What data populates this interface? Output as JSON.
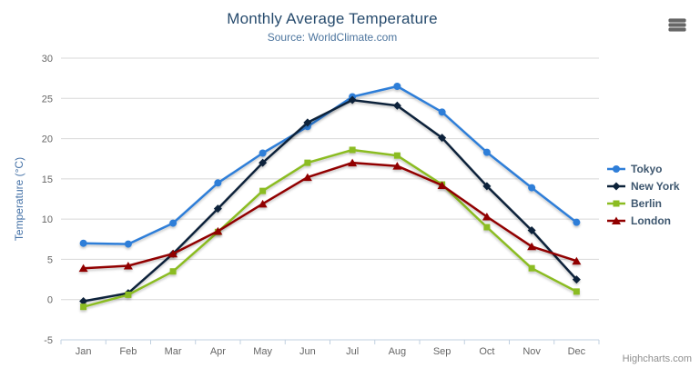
{
  "chart_data": {
    "type": "line",
    "title": "Monthly Average Temperature",
    "subtitle": "Source: WorldClimate.com",
    "xlabel": "",
    "ylabel": "Temperature (°C)",
    "categories": [
      "Jan",
      "Feb",
      "Mar",
      "Apr",
      "May",
      "Jun",
      "Jul",
      "Aug",
      "Sep",
      "Oct",
      "Nov",
      "Dec"
    ],
    "ylim": [
      -5,
      30
    ],
    "yticks": [
      -5,
      0,
      5,
      10,
      15,
      20,
      25,
      30
    ],
    "grid": true,
    "legend_position": "right",
    "series": [
      {
        "name": "Tokyo",
        "color": "#2f7ed8",
        "marker": "circle",
        "values": [
          7.0,
          6.9,
          9.5,
          14.5,
          18.2,
          21.5,
          25.2,
          26.5,
          23.3,
          18.3,
          13.9,
          9.6
        ]
      },
      {
        "name": "New York",
        "color": "#0d233a",
        "marker": "diamond",
        "values": [
          -0.2,
          0.8,
          5.7,
          11.3,
          17.0,
          22.0,
          24.8,
          24.1,
          20.1,
          14.1,
          8.6,
          2.5
        ]
      },
      {
        "name": "Berlin",
        "color": "#8bbc21",
        "marker": "square",
        "values": [
          -0.9,
          0.6,
          3.5,
          8.4,
          13.5,
          17.0,
          18.6,
          17.9,
          14.3,
          9.0,
          3.9,
          1.0
        ]
      },
      {
        "name": "London",
        "color": "#910000",
        "marker": "triangle",
        "values": [
          3.9,
          4.2,
          5.7,
          8.5,
          11.9,
          15.2,
          17.0,
          16.6,
          14.2,
          10.3,
          6.6,
          4.8
        ]
      }
    ]
  },
  "credits": "Highcharts.com",
  "icons": {
    "export_menu": "hamburger-icon"
  },
  "colors": {
    "title": "#274b6d",
    "subtitle": "#4d759e",
    "axis_labels": "#666666",
    "y_axis_title": "#4572a7",
    "gridline": "#d8d8d8",
    "axis_line": "#c0d0e0",
    "legend_text": "#3e576f",
    "credits_text": "#8f8f8f",
    "export_icon": "#666666"
  }
}
